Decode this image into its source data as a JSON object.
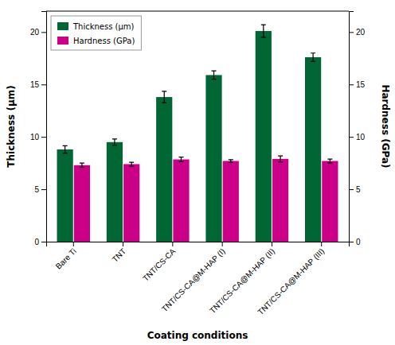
{
  "chart_data": {
    "type": "bar",
    "categories": [
      "Bare Ti",
      "TNT",
      "TNT/CS-CA",
      "TNT/CS-CA@M-HAP (I)",
      "TNT/CS-CA@M-HAP (II)",
      "TNT/CS-CA@M-HAP (III)"
    ],
    "series": [
      {
        "name": "Thickness (μm)",
        "color": "#006633",
        "values": [
          8.8,
          9.5,
          13.8,
          15.9,
          20.1,
          17.6
        ],
        "errors": [
          0.35,
          0.3,
          0.55,
          0.4,
          0.6,
          0.4
        ]
      },
      {
        "name": "Hardness (GPa)",
        "color": "#CC0088",
        "values": [
          7.3,
          7.4,
          7.85,
          7.7,
          7.9,
          7.7
        ],
        "errors": [
          0.2,
          0.18,
          0.22,
          0.12,
          0.28,
          0.18
        ]
      }
    ],
    "xlabel": "Coating conditions",
    "ylabel": "Thickness (μm)",
    "y2label": "Hardness (GPa)",
    "ylim": [
      0,
      22
    ],
    "yticks": [
      0,
      5,
      10,
      15,
      20
    ],
    "y2lim": [
      0,
      22
    ],
    "y2ticks": [
      0,
      5,
      10,
      15,
      20
    ],
    "legend": "upper left"
  }
}
